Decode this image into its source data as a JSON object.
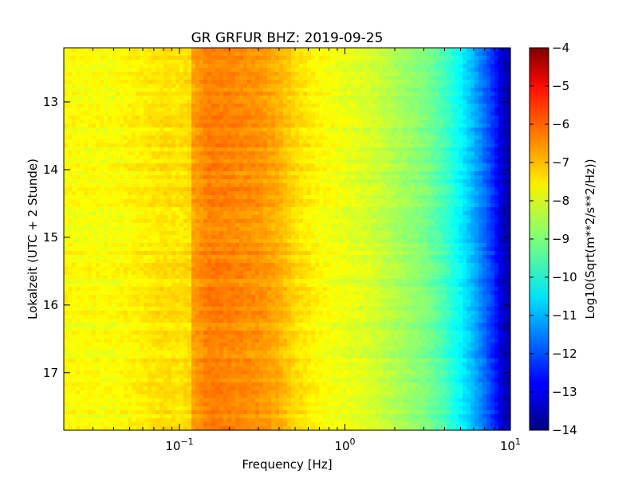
{
  "chart_data": {
    "type": "heatmap",
    "title": "GR GRFUR BHZ: 2019-09-25",
    "xlabel": "Frequency [Hz]",
    "ylabel": "Lokalzeit (UTC + 2 Stunde)",
    "x_scale": "log",
    "xlim": [
      0.02,
      10
    ],
    "ylim": [
      12.2,
      17.85
    ],
    "y_inverted": true,
    "x_ticks": [
      {
        "value": 0.1,
        "base": "10",
        "exp": "−1"
      },
      {
        "value": 1,
        "base": "10",
        "exp": "0"
      },
      {
        "value": 10,
        "base": "10",
        "exp": "1"
      }
    ],
    "y_ticks": [
      {
        "value": 13,
        "label": "13"
      },
      {
        "value": 14,
        "label": "14"
      },
      {
        "value": 15,
        "label": "15"
      },
      {
        "value": 16,
        "label": "16"
      },
      {
        "value": 17,
        "label": "17"
      }
    ],
    "colormap": "jet",
    "colorbar": {
      "label": "Log10(Sqrt(m**2/s**2/Hz))",
      "min": -14,
      "max": -4,
      "ticks": [
        "−4",
        "−5",
        "−6",
        "−7",
        "−8",
        "−9",
        "−10",
        "−11",
        "−12",
        "−13",
        "−14"
      ]
    },
    "spectrum_profile": {
      "frequency_hz": [
        0.02,
        0.04,
        0.06,
        0.08,
        0.1,
        0.115,
        0.12,
        0.15,
        0.2,
        0.3,
        0.4,
        0.5,
        0.7,
        1.0,
        1.5,
        2.0,
        3.0,
        4.0,
        5.0,
        6.0,
        7.0,
        8.0,
        9.0,
        10.0
      ],
      "log10_amplitude": [
        -7.75,
        -7.8,
        -7.6,
        -7.45,
        -7.5,
        -7.4,
        -6.85,
        -6.5,
        -6.55,
        -6.7,
        -7.0,
        -7.4,
        -7.75,
        -7.95,
        -8.2,
        -8.55,
        -9.0,
        -9.6,
        -10.3,
        -11.0,
        -11.7,
        -12.4,
        -13.3,
        -13.6
      ]
    }
  }
}
